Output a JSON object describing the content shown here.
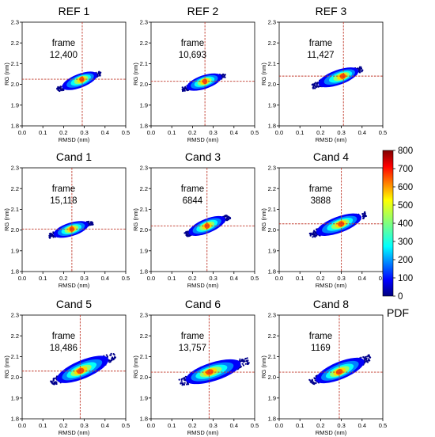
{
  "panels": [
    {
      "title": "REF 1",
      "frame_label": "frame",
      "frame_value": "12,400",
      "cross": {
        "x": 0.29,
        "y": 2.025
      },
      "cloud": {
        "x0": 0.17,
        "y0": 1.975,
        "x1": 0.38,
        "y1": 2.055
      }
    },
    {
      "title": "REF 2",
      "frame_label": "frame",
      "frame_value": "10,693",
      "cross": {
        "x": 0.26,
        "y": 2.015
      },
      "cloud": {
        "x0": 0.15,
        "y0": 1.975,
        "x1": 0.36,
        "y1": 2.045
      }
    },
    {
      "title": "REF 3",
      "frame_label": "frame",
      "frame_value": "11,427",
      "cross": {
        "x": 0.31,
        "y": 2.04
      },
      "cloud": {
        "x0": 0.16,
        "y0": 1.99,
        "x1": 0.4,
        "y1": 2.075
      }
    },
    {
      "title": "Cand 1",
      "frame_label": "frame",
      "frame_value": "15,118",
      "cross": {
        "x": 0.24,
        "y": 2.005
      },
      "cloud": {
        "x0": 0.13,
        "y0": 1.97,
        "x1": 0.34,
        "y1": 2.035
      }
    },
    {
      "title": "Cand 3",
      "frame_label": "frame",
      "frame_value": "6844",
      "cross": {
        "x": 0.27,
        "y": 2.02
      },
      "cloud": {
        "x0": 0.16,
        "y0": 1.975,
        "x1": 0.38,
        "y1": 2.065
      }
    },
    {
      "title": "Cand 4",
      "frame_label": "frame",
      "frame_value": "3888",
      "cross": {
        "x": 0.3,
        "y": 2.03
      },
      "cloud": {
        "x0": 0.15,
        "y0": 1.975,
        "x1": 0.42,
        "y1": 2.075
      }
    },
    {
      "title": "Cand 5",
      "frame_label": "frame",
      "frame_value": "18,486",
      "cross": {
        "x": 0.28,
        "y": 2.03
      },
      "cloud": {
        "x0": 0.14,
        "y0": 1.975,
        "x1": 0.45,
        "y1": 2.105
      }
    },
    {
      "title": "Cand 6",
      "frame_label": "frame",
      "frame_value": "13,757",
      "cross": {
        "x": 0.28,
        "y": 2.025
      },
      "cloud": {
        "x0": 0.14,
        "y0": 1.975,
        "x1": 0.47,
        "y1": 2.08
      }
    },
    {
      "title": "Cand 8",
      "frame_label": "frame",
      "frame_value": "1169",
      "cross": {
        "x": 0.29,
        "y": 2.025
      },
      "cloud": {
        "x0": 0.15,
        "y0": 1.975,
        "x1": 0.44,
        "y1": 2.095
      }
    }
  ],
  "axes": {
    "xlabel": "RMSD (nm)",
    "ylabel": "RG (nm)",
    "xlim": [
      0,
      0.5
    ],
    "ylim": [
      1.8,
      2.3
    ],
    "xticks": [
      "0.0",
      "0.1",
      "0.2",
      "0.3",
      "0.4",
      "0.5"
    ],
    "yticks": [
      "1.8",
      "1.9",
      "2.0",
      "2.1",
      "2.2",
      "2.3"
    ]
  },
  "colorbar": {
    "label": "PDF",
    "range": [
      0,
      800
    ],
    "ticks": [
      "0",
      "100",
      "200",
      "300",
      "400",
      "500",
      "600",
      "700",
      "800"
    ],
    "colormap": "jet"
  },
  "colors": {
    "crosshair": "#c0392b"
  },
  "chart_data": {
    "type": "heatmap",
    "xlabel": "RMSD (nm)",
    "ylabel": "RG (nm)",
    "xlim": [
      0,
      0.5
    ],
    "ylim": [
      1.8,
      2.3
    ],
    "colorbar_label": "PDF",
    "colorbar_range": [
      0,
      800
    ],
    "panels": [
      {
        "title": "REF 1",
        "frame": "12,400",
        "selected_rmsd": 0.29,
        "selected_rg": 2.025
      },
      {
        "title": "REF 2",
        "frame": "10,693",
        "selected_rmsd": 0.26,
        "selected_rg": 2.015
      },
      {
        "title": "REF 3",
        "frame": "11,427",
        "selected_rmsd": 0.31,
        "selected_rg": 2.04
      },
      {
        "title": "Cand 1",
        "frame": "15,118",
        "selected_rmsd": 0.24,
        "selected_rg": 2.005
      },
      {
        "title": "Cand 3",
        "frame": "6844",
        "selected_rmsd": 0.27,
        "selected_rg": 2.02
      },
      {
        "title": "Cand 4",
        "frame": "3888",
        "selected_rmsd": 0.3,
        "selected_rg": 2.03
      },
      {
        "title": "Cand 5",
        "frame": "18,486",
        "selected_rmsd": 0.28,
        "selected_rg": 2.03
      },
      {
        "title": "Cand 6",
        "frame": "13,757",
        "selected_rmsd": 0.28,
        "selected_rg": 2.025
      },
      {
        "title": "Cand 8",
        "frame": "1169",
        "selected_rmsd": 0.29,
        "selected_rg": 2.025
      }
    ]
  }
}
